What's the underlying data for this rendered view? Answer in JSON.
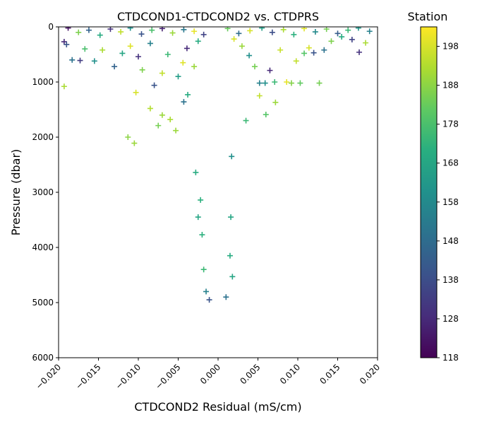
{
  "chart_data": {
    "type": "scatter",
    "title": "CTDCOND1-CTDCOND2 vs. CTDPRS",
    "xlabel": "CTDCOND2 Residual (mS/cm)",
    "ylabel": "Pressure (dbar)",
    "xlim": [
      -0.02,
      0.02
    ],
    "ylim": [
      6000,
      0
    ],
    "x_ticks": [
      -0.02,
      -0.015,
      -0.01,
      -0.005,
      0.0,
      0.005,
      0.01,
      0.015,
      0.02
    ],
    "x_tick_labels": [
      "−0.020",
      "−0.015",
      "−0.010",
      "−0.005",
      "0.000",
      "0.005",
      "0.010",
      "0.015",
      "0.020"
    ],
    "y_ticks": [
      0,
      1000,
      2000,
      3000,
      4000,
      5000,
      6000
    ],
    "y_tick_labels": [
      "0",
      "1000",
      "2000",
      "3000",
      "4000",
      "5000",
      "6000"
    ],
    "marker": "+",
    "grid": false,
    "colorbar": {
      "label": "Station",
      "colormap": "viridis",
      "range": [
        118,
        203
      ],
      "ticks": [
        118,
        128,
        138,
        148,
        158,
        168,
        178,
        188,
        198
      ],
      "tick_labels": [
        "118",
        "128",
        "138",
        "148",
        "158",
        "168",
        "178",
        "188",
        "198"
      ]
    },
    "points": [
      {
        "x": -0.0188,
        "y": 20,
        "station": 122
      },
      {
        "x": -0.0175,
        "y": 100,
        "station": 186
      },
      {
        "x": -0.0162,
        "y": 60,
        "station": 145
      },
      {
        "x": -0.0148,
        "y": 150,
        "station": 170
      },
      {
        "x": -0.0135,
        "y": 40,
        "station": 130
      },
      {
        "x": -0.0122,
        "y": 90,
        "station": 195
      },
      {
        "x": -0.011,
        "y": 20,
        "station": 160
      },
      {
        "x": -0.0096,
        "y": 130,
        "station": 140
      },
      {
        "x": -0.0083,
        "y": 60,
        "station": 178
      },
      {
        "x": -0.007,
        "y": 30,
        "station": 126
      },
      {
        "x": -0.0057,
        "y": 110,
        "station": 190
      },
      {
        "x": -0.0043,
        "y": 50,
        "station": 152
      },
      {
        "x": -0.003,
        "y": 80,
        "station": 200
      },
      {
        "x": -0.0018,
        "y": 140,
        "station": 135
      },
      {
        "x": 0.0012,
        "y": 30,
        "station": 183
      },
      {
        "x": 0.0026,
        "y": 120,
        "station": 148
      },
      {
        "x": 0.004,
        "y": 70,
        "station": 198
      },
      {
        "x": 0.0055,
        "y": 20,
        "station": 165
      },
      {
        "x": 0.0068,
        "y": 100,
        "station": 138
      },
      {
        "x": 0.0082,
        "y": 50,
        "station": 192
      },
      {
        "x": 0.0095,
        "y": 140,
        "station": 172
      },
      {
        "x": 0.0108,
        "y": 30,
        "station": 199
      },
      {
        "x": 0.0122,
        "y": 90,
        "station": 158
      },
      {
        "x": 0.0136,
        "y": 40,
        "station": 185
      },
      {
        "x": 0.015,
        "y": 120,
        "station": 143
      },
      {
        "x": 0.0163,
        "y": 60,
        "station": 175
      },
      {
        "x": 0.0176,
        "y": 20,
        "station": 162
      },
      {
        "x": 0.019,
        "y": 80,
        "station": 155
      },
      {
        "x": -0.0193,
        "y": 270,
        "station": 128
      },
      {
        "x": -0.019,
        "y": 320,
        "station": 140
      },
      {
        "x": -0.0183,
        "y": 600,
        "station": 150
      },
      {
        "x": -0.0173,
        "y": 610,
        "station": 133
      },
      {
        "x": -0.0167,
        "y": 400,
        "station": 178
      },
      {
        "x": -0.0155,
        "y": 620,
        "station": 160
      },
      {
        "x": -0.0145,
        "y": 420,
        "station": 192
      },
      {
        "x": -0.013,
        "y": 720,
        "station": 145
      },
      {
        "x": -0.012,
        "y": 480,
        "station": 168
      },
      {
        "x": -0.011,
        "y": 350,
        "station": 199
      },
      {
        "x": -0.01,
        "y": 540,
        "station": 130
      },
      {
        "x": -0.0095,
        "y": 780,
        "station": 186
      },
      {
        "x": -0.0085,
        "y": 300,
        "station": 155
      },
      {
        "x": -0.008,
        "y": 1060,
        "station": 140
      },
      {
        "x": -0.007,
        "y": 840,
        "station": 195
      },
      {
        "x": -0.0063,
        "y": 500,
        "station": 175
      },
      {
        "x": -0.005,
        "y": 900,
        "station": 165
      },
      {
        "x": -0.0044,
        "y": 650,
        "station": 199
      },
      {
        "x": -0.0039,
        "y": 390,
        "station": 128
      },
      {
        "x": -0.003,
        "y": 720,
        "station": 190
      },
      {
        "x": -0.0025,
        "y": 260,
        "station": 170
      },
      {
        "x": 0.002,
        "y": 220,
        "station": 198
      },
      {
        "x": 0.003,
        "y": 350,
        "station": 190
      },
      {
        "x": 0.0039,
        "y": 520,
        "station": 160
      },
      {
        "x": 0.0046,
        "y": 720,
        "station": 185
      },
      {
        "x": 0.0052,
        "y": 1020,
        "station": 155
      },
      {
        "x": 0.0059,
        "y": 1020,
        "station": 160
      },
      {
        "x": 0.0065,
        "y": 790,
        "station": 128
      },
      {
        "x": 0.0071,
        "y": 1000,
        "station": 175
      },
      {
        "x": 0.0078,
        "y": 420,
        "station": 196
      },
      {
        "x": 0.0086,
        "y": 1000,
        "station": 200
      },
      {
        "x": 0.0092,
        "y": 1020,
        "station": 187
      },
      {
        "x": 0.0098,
        "y": 620,
        "station": 195
      },
      {
        "x": 0.0103,
        "y": 1020,
        "station": 182
      },
      {
        "x": 0.0108,
        "y": 480,
        "station": 180
      },
      {
        "x": 0.0114,
        "y": 380,
        "station": 198
      },
      {
        "x": 0.012,
        "y": 470,
        "station": 140
      },
      {
        "x": 0.0127,
        "y": 1020,
        "station": 185
      },
      {
        "x": 0.0133,
        "y": 420,
        "station": 150
      },
      {
        "x": 0.0142,
        "y": 260,
        "station": 186
      },
      {
        "x": 0.0155,
        "y": 180,
        "station": 170
      },
      {
        "x": 0.0168,
        "y": 230,
        "station": 135
      },
      {
        "x": 0.0177,
        "y": 460,
        "station": 130
      },
      {
        "x": 0.0185,
        "y": 290,
        "station": 192
      },
      {
        "x": -0.0193,
        "y": 1080,
        "station": 192
      },
      {
        "x": -0.0103,
        "y": 1190,
        "station": 198
      },
      {
        "x": -0.0113,
        "y": 2000,
        "station": 188
      },
      {
        "x": -0.0105,
        "y": 2110,
        "station": 190
      },
      {
        "x": -0.0085,
        "y": 1480,
        "station": 193
      },
      {
        "x": -0.007,
        "y": 1600,
        "station": 190
      },
      {
        "x": -0.0075,
        "y": 1790,
        "station": 185
      },
      {
        "x": -0.006,
        "y": 1680,
        "station": 192
      },
      {
        "x": -0.0053,
        "y": 1880,
        "station": 190
      },
      {
        "x": -0.0043,
        "y": 1360,
        "station": 150
      },
      {
        "x": -0.0038,
        "y": 1230,
        "station": 170
      },
      {
        "x": 0.0052,
        "y": 1250,
        "station": 195
      },
      {
        "x": 0.006,
        "y": 1590,
        "station": 180
      },
      {
        "x": 0.0072,
        "y": 1370,
        "station": 190
      },
      {
        "x": 0.0035,
        "y": 1700,
        "station": 175
      },
      {
        "x": -0.0028,
        "y": 2640,
        "station": 170
      },
      {
        "x": -0.0025,
        "y": 3450,
        "station": 168
      },
      {
        "x": -0.0022,
        "y": 3140,
        "station": 172
      },
      {
        "x": 0.0017,
        "y": 2350,
        "station": 160
      },
      {
        "x": 0.0016,
        "y": 3450,
        "station": 168
      },
      {
        "x": -0.002,
        "y": 3770,
        "station": 172
      },
      {
        "x": 0.0015,
        "y": 4150,
        "station": 170
      },
      {
        "x": -0.0018,
        "y": 4400,
        "station": 175
      },
      {
        "x": 0.0018,
        "y": 4530,
        "station": 168
      },
      {
        "x": -0.0015,
        "y": 4800,
        "station": 155
      },
      {
        "x": 0.001,
        "y": 4900,
        "station": 150
      },
      {
        "x": -0.0011,
        "y": 4950,
        "station": 140
      }
    ]
  }
}
